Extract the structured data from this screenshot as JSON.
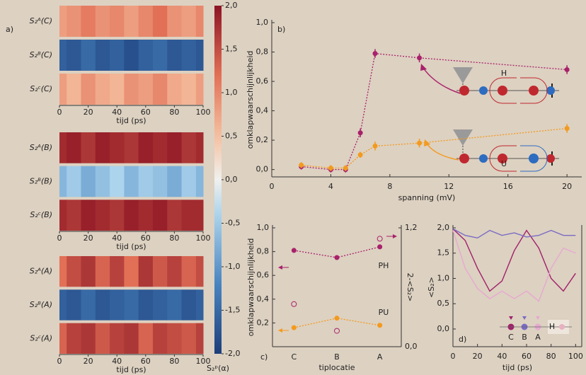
{
  "chart_data": [
    {
      "type": "heatmap",
      "panel": "a)",
      "x": [
        0,
        10,
        20,
        30,
        40,
        50,
        60,
        70,
        80,
        90,
        100
      ],
      "xlim": [
        0,
        100
      ],
      "xticks": [
        0,
        20,
        40,
        60,
        80,
        100
      ],
      "xlabel": "tijd (ps)",
      "rows": [
        {
          "name": "S₂ᴬ(C)",
          "values": [
            0.8,
            0.9,
            1.1,
            0.9,
            1.0,
            0.8,
            1.0,
            1.2,
            0.9,
            0.8,
            1.0
          ]
        },
        {
          "name": "S₂ᴮ(C)",
          "values": [
            -1.6,
            -1.7,
            -1.5,
            -1.7,
            -1.6,
            -1.8,
            -1.6,
            -1.5,
            -1.7,
            -1.6,
            -1.7
          ]
        },
        {
          "name": "S₂ᶜ(C)",
          "values": [
            0.8,
            0.6,
            0.9,
            0.7,
            0.6,
            0.9,
            0.8,
            1.0,
            0.7,
            0.6,
            0.8
          ]
        }
      ]
    },
    {
      "type": "heatmap",
      "x": [
        0,
        10,
        20,
        30,
        40,
        50,
        60,
        70,
        80,
        90,
        100
      ],
      "xlim": [
        0,
        100
      ],
      "xticks": [
        0,
        20,
        40,
        60,
        80,
        100
      ],
      "xlabel": "tijd (ps)",
      "rows": [
        {
          "name": "S₂ᴬ(B)",
          "values": [
            1.8,
            1.9,
            1.7,
            1.9,
            1.8,
            1.7,
            1.9,
            1.8,
            1.9,
            1.7,
            1.8
          ]
        },
        {
          "name": "S₂ᴮ(B)",
          "values": [
            -0.7,
            -0.5,
            -0.8,
            -0.6,
            -0.4,
            -0.7,
            -0.5,
            -0.6,
            -0.8,
            -0.5,
            -0.7
          ]
        },
        {
          "name": "S₂ᶜ(B)",
          "values": [
            1.8,
            1.7,
            1.9,
            1.8,
            1.7,
            1.9,
            1.8,
            1.9,
            1.7,
            1.8,
            1.8
          ]
        }
      ]
    },
    {
      "type": "heatmap",
      "x": [
        0,
        10,
        20,
        30,
        40,
        50,
        60,
        70,
        80,
        90,
        100
      ],
      "xlim": [
        0,
        100
      ],
      "xticks": [
        0,
        20,
        40,
        60,
        80,
        100
      ],
      "xlabel": "tijd (ps)",
      "rows": [
        {
          "name": "S₂ᴬ(A)",
          "values": [
            1.2,
            1.5,
            1.7,
            1.3,
            1.6,
            1.2,
            1.7,
            1.4,
            1.6,
            1.3,
            1.5
          ]
        },
        {
          "name": "S₂ᴮ(A)",
          "values": [
            -1.6,
            -1.7,
            -1.5,
            -1.7,
            -1.6,
            -1.5,
            -1.7,
            -1.6,
            -1.5,
            -1.7,
            -1.6
          ]
        },
        {
          "name": "S₂ᶜ(A)",
          "values": [
            1.3,
            1.6,
            1.7,
            1.4,
            1.6,
            1.7,
            1.3,
            1.6,
            1.5,
            1.4,
            1.6
          ]
        }
      ]
    },
    {
      "type": "colorbar",
      "label": "S₂ᵖ(α)",
      "ylim": [
        -2,
        2
      ],
      "yticks": [
        {
          "value": 2,
          "label": "2,0"
        },
        {
          "value": 1.5,
          "label": "1,5"
        },
        {
          "value": 1,
          "label": "1,0"
        },
        {
          "value": 0.5,
          "label": "0,5"
        },
        {
          "value": 0,
          "label": "0,0"
        },
        {
          "value": -0.5,
          "label": "-0,5"
        },
        {
          "value": -1,
          "label": "-1,0"
        },
        {
          "value": -1.5,
          "label": "-1,5"
        },
        {
          "value": -2,
          "label": "-2,0"
        }
      ]
    },
    {
      "type": "line",
      "panel": "b)",
      "xlabel": "spanning (mV)",
      "ylabel": "omklapwaarschijnlijkheid",
      "x": [
        2,
        4,
        5,
        6,
        7,
        10,
        20
      ],
      "xlim": [
        0,
        21
      ],
      "xticks": [
        0,
        4,
        8,
        12,
        16,
        20
      ],
      "ylim": [
        -0.05,
        1.0
      ],
      "yticks": [
        {
          "value": 0,
          "label": "0,0"
        },
        {
          "value": 0.2,
          "label": "0,2"
        },
        {
          "value": 0.4,
          "label": "0,4"
        },
        {
          "value": 0.6,
          "label": "0,6"
        },
        {
          "value": 0.8,
          "label": "0,8"
        },
        {
          "value": 1,
          "label": "1,0"
        }
      ],
      "line_style": "dotted",
      "series": [
        {
          "name": "H",
          "color": "#a8216b",
          "marker": "filled",
          "values": [
            0.02,
            0.0,
            0.0,
            0.25,
            0.79,
            0.76,
            0.68
          ],
          "errors": [
            0.02,
            0.02,
            0.02,
            0.03,
            0.03,
            0.03,
            0.03
          ]
        },
        {
          "name": "U",
          "color": "#f39a1e",
          "marker": "filled",
          "values": [
            0.03,
            0.01,
            0.01,
            0.1,
            0.16,
            0.18,
            0.28
          ],
          "errors": [
            0.02,
            0.02,
            0.02,
            0.02,
            0.03,
            0.03,
            0.03
          ]
        }
      ]
    },
    {
      "type": "line",
      "panel": "c)",
      "xlabel": "tiplocatie",
      "ylabel": "omklapwaarschijnlijkheid",
      "y2label": "2-<S₂>",
      "categories": [
        "C",
        "B",
        "A"
      ],
      "ylim": [
        0,
        1.0
      ],
      "yticks": [
        {
          "value": 0.2,
          "label": "0,2"
        },
        {
          "value": 0.4,
          "label": "0,4"
        },
        {
          "value": 0.6,
          "label": "0,6"
        },
        {
          "value": 0.8,
          "label": "0,8"
        },
        {
          "value": 1,
          "label": "1,0"
        }
      ],
      "y2lim": [
        0,
        1.2
      ],
      "y2ticks": [
        {
          "value": 0,
          "label": "0,0"
        },
        {
          "value": 1.2,
          "label": "1,2"
        }
      ],
      "line_style": "dotted",
      "series": [
        {
          "name": "PH",
          "color": "#a8216b",
          "marker": "filled",
          "values": [
            0.81,
            0.75,
            0.84
          ]
        },
        {
          "name": "PU",
          "color": "#f39a1e",
          "marker": "filled",
          "values": [
            0.16,
            0.24,
            0.18
          ]
        },
        {
          "color": "#a8216b",
          "marker": "open",
          "axis": "y2",
          "values": [
            0.43,
            0.16,
            1.09
          ]
        }
      ]
    },
    {
      "type": "line",
      "panel": "d)",
      "xlabel": "tijd (ps)",
      "ylabel": "<S₂>",
      "legend_note": "H",
      "x": [
        0,
        10,
        20,
        30,
        40,
        50,
        60,
        70,
        80,
        90,
        100
      ],
      "xlim": [
        0,
        105
      ],
      "xticks": [
        0,
        20,
        40,
        60,
        80,
        100
      ],
      "ylim": [
        -0.35,
        2.0
      ],
      "yticks": [
        {
          "value": 0,
          "label": "0,0"
        },
        {
          "value": 0.5,
          "label": "0,5"
        },
        {
          "value": 1,
          "label": "1,0"
        },
        {
          "value": 1.5,
          "label": "1,5"
        },
        {
          "value": 2,
          "label": "2,0"
        }
      ],
      "series": [
        {
          "name": "C",
          "color": "#a0206a",
          "values": [
            1.98,
            1.75,
            1.2,
            0.75,
            0.95,
            1.55,
            1.95,
            1.6,
            1.0,
            0.75,
            1.1
          ]
        },
        {
          "name": "B",
          "color": "#7a6bc4",
          "values": [
            1.98,
            1.85,
            1.8,
            1.95,
            1.85,
            1.9,
            1.82,
            1.85,
            1.95,
            1.85,
            1.85
          ]
        },
        {
          "name": "A",
          "color": "#e6a9d0",
          "values": [
            1.95,
            1.2,
            0.8,
            0.6,
            0.75,
            0.6,
            0.75,
            0.55,
            1.2,
            1.6,
            1.5
          ]
        }
      ]
    }
  ]
}
